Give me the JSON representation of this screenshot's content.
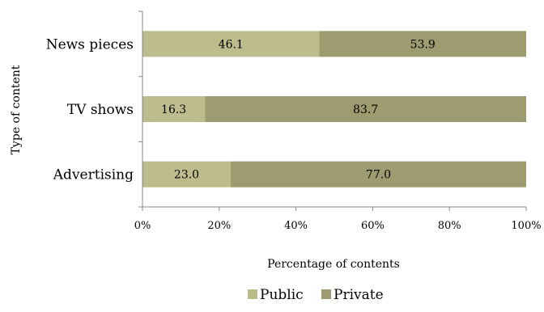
{
  "chart_data": {
    "type": "bar",
    "orientation": "horizontal",
    "stacked": true,
    "categories": [
      "News pieces",
      "TV shows",
      "Advertising"
    ],
    "series": [
      {
        "name": "Public",
        "values": [
          46.1,
          16.3,
          23.0
        ],
        "labels": [
          "46.1",
          "16.3",
          "23.0"
        ],
        "color": "#bcbc8c"
      },
      {
        "name": "Private",
        "values": [
          53.9,
          83.7,
          77.0
        ],
        "labels": [
          "53.9",
          "83.7",
          "77.0"
        ],
        "color": "#9c9c70"
      }
    ],
    "xlabel": "Percentage of contents",
    "ylabel": "Type of content",
    "xlim": [
      0,
      100
    ],
    "xticks": [
      "0%",
      "20%",
      "40%",
      "60%",
      "80%",
      "100%"
    ],
    "grid": false,
    "legend": "bottom"
  }
}
